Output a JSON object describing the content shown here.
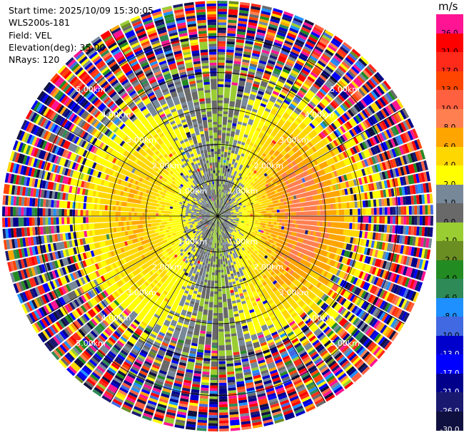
{
  "info": {
    "start_time": "Start time: 2025/10/09 15:30:05",
    "instrument": "WLS200s-181",
    "field": "Field: VEL",
    "elevation": "Elevation(deg): 35.00",
    "nrays": "NRays: 120"
  },
  "colorbar": {
    "unit": "m/s",
    "entries": [
      {
        "label": "26.0",
        "color": "#ff1493"
      },
      {
        "label": "21.0",
        "color": "#ff0000"
      },
      {
        "label": "17.0",
        "color": "#ff2a1a"
      },
      {
        "label": "13.0",
        "color": "#ff4500"
      },
      {
        "label": "10.0",
        "color": "#ff6040"
      },
      {
        "label": "8.0",
        "color": "#ff7f50"
      },
      {
        "label": "6.0",
        "color": "#ffa500"
      },
      {
        "label": "4.0",
        "color": "#ffd700"
      },
      {
        "label": "2.0",
        "color": "#ffff00"
      },
      {
        "label": "1.0",
        "color": "#778899"
      },
      {
        "label": "0.0",
        "color": "#696969"
      },
      {
        "label": "-1.0",
        "color": "#9acd32"
      },
      {
        "label": "-2.0",
        "color": "#6b8e23"
      },
      {
        "label": "-4.0",
        "color": "#228b22"
      },
      {
        "label": "-6.0",
        "color": "#2e8b57"
      },
      {
        "label": "-8.0",
        "color": "#1e90ff"
      },
      {
        "label": "-10.0",
        "color": "#4169e1"
      },
      {
        "label": "-13.0",
        "color": "#0000cd"
      },
      {
        "label": "-17.0",
        "color": "#0000ff"
      },
      {
        "label": "-21.0",
        "color": "#00008b"
      },
      {
        "label": "-26.0",
        "color": "#191970"
      },
      {
        "label": "-30.0",
        "color": "#101040"
      }
    ]
  },
  "chart_data": {
    "type": "heatmap",
    "projection": "polar-ppi",
    "field": "VEL",
    "units": "m/s",
    "elevation_deg": 35.0,
    "n_rays": 120,
    "range_rings_km": [
      1.0,
      2.0,
      3.0,
      4.0,
      5.0
    ],
    "ring_labels": [
      "1.00km",
      "2.00km",
      "3.00km",
      "4.00km",
      "5.00km"
    ],
    "max_range_km": 6.0,
    "spoke_step_deg": 30,
    "vmin": -30.0,
    "vmax": 30.0,
    "pattern": {
      "description_note": "east half positive (toward warm colors), west half negative (greens), noisy beyond ~4 km",
      "peak_positive_ms": 9.0,
      "peak_negative_ms": -6.0,
      "noise_start_km": 3.6
    }
  }
}
